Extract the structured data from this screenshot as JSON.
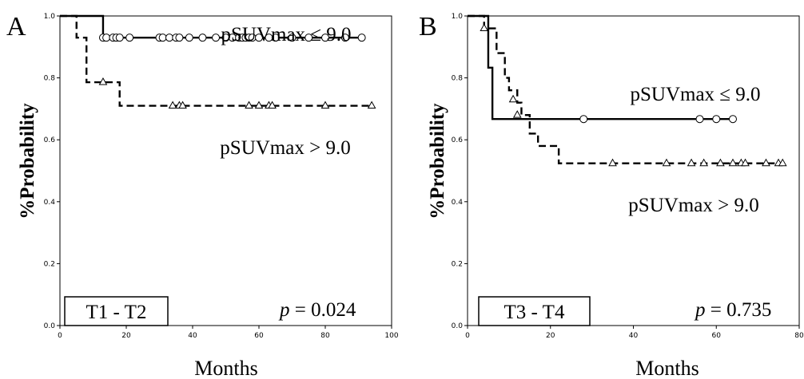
{
  "chart_data": [
    {
      "type": "line",
      "panel": "A",
      "xlabel": "Months",
      "ylabel": "%Probability",
      "xlim": [
        0,
        100
      ],
      "ylim": [
        0,
        1.0
      ],
      "xticks": [
        "0",
        "20",
        "40",
        "60",
        "80",
        "100"
      ],
      "yticks": [
        "0.0",
        "0.2",
        "0.4",
        "0.6",
        "0.8",
        "1.0"
      ],
      "group_label": "T1 - T2",
      "p_label": "p",
      "p_value": "= 0.024",
      "grid": false,
      "series": [
        {
          "name": "pSUVmax ≤ 9.0",
          "style": "solid",
          "marker": "circle",
          "steps": [
            [
              0,
              1.0
            ],
            [
              13,
              0.93
            ],
            [
              91,
              0.93
            ]
          ],
          "censored": [
            13,
            14,
            16,
            17,
            18,
            21,
            30,
            31,
            33,
            35,
            36,
            39,
            43,
            47,
            50,
            52,
            54,
            55,
            56,
            57,
            58,
            60,
            63,
            65,
            70,
            75,
            80,
            86,
            91
          ],
          "censored_y": 0.93
        },
        {
          "name": "pSUVmax > 9.0",
          "style": "dashed",
          "marker": "triangle",
          "steps": [
            [
              0,
              1.0
            ],
            [
              5,
              0.93
            ],
            [
              8,
              0.786
            ],
            [
              13,
              0.786
            ],
            [
              18,
              0.71
            ],
            [
              94,
              0.71
            ]
          ],
          "censored": [
            13,
            34,
            36,
            37,
            57,
            60,
            63,
            64,
            80,
            94
          ],
          "censored_y_map": {
            "13": 0.786
          }
        }
      ]
    },
    {
      "type": "line",
      "panel": "B",
      "xlabel": "Months",
      "ylabel": "%Probability",
      "xlim": [
        0,
        80
      ],
      "ylim": [
        0,
        1.0
      ],
      "xticks": [
        "0",
        "20",
        "40",
        "60",
        "80"
      ],
      "yticks": [
        "0.0",
        "0.2",
        "0.4",
        "0.6",
        "0.8",
        "1.0"
      ],
      "group_label": "T3 - T4",
      "p_label": "p",
      "p_value": "= 0.735",
      "grid": false,
      "series": [
        {
          "name": "pSUVmax ≤ 9.0",
          "style": "solid",
          "marker": "circle",
          "steps": [
            [
              0,
              1.0
            ],
            [
              5,
              0.833
            ],
            [
              6,
              0.667
            ],
            [
              64,
              0.667
            ]
          ],
          "censored": [
            28,
            56,
            60,
            64
          ],
          "censored_y": 0.667
        },
        {
          "name": "pSUVmax > 9.0",
          "style": "dashed",
          "marker": "triangle",
          "steps": [
            [
              0,
              1.0
            ],
            [
              4,
              0.96
            ],
            [
              7,
              0.88
            ],
            [
              9,
              0.8
            ],
            [
              10,
              0.76
            ],
            [
              12,
              0.72
            ],
            [
              13,
              0.68
            ],
            [
              15,
              0.62
            ],
            [
              17,
              0.58
            ],
            [
              22,
              0.524
            ],
            [
              76,
              0.524
            ]
          ],
          "censored": [
            4,
            11,
            12,
            35,
            48,
            54,
            57,
            61,
            64,
            66,
            67,
            72,
            75,
            76
          ],
          "censored_y_map": {
            "4": 0.96,
            "11": 0.73,
            "12": 0.68
          }
        }
      ]
    }
  ]
}
